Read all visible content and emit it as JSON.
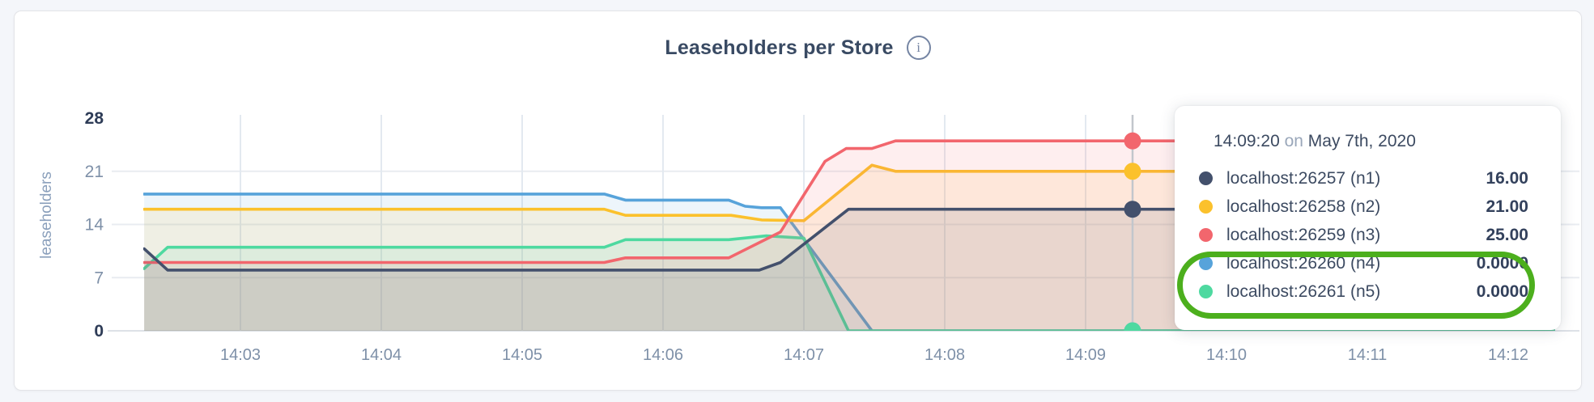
{
  "chart": {
    "title": "Leaseholders per Store",
    "info_icon_glyph": "i",
    "y_axis_label": "leaseholders"
  },
  "tooltip": {
    "time": "14:09:20",
    "conjunction": "on",
    "date": "May 7th, 2020",
    "rows": [
      {
        "label": "localhost:26257 (n1)",
        "value": "16.00",
        "color": "#43506c"
      },
      {
        "label": "localhost:26258 (n2)",
        "value": "21.00",
        "color": "#fbc12c"
      },
      {
        "label": "localhost:26259 (n3)",
        "value": "25.00",
        "color": "#f2666d"
      },
      {
        "label": "localhost:26260 (n4)",
        "value": "0.0000",
        "color": "#57a3da"
      },
      {
        "label": "localhost:26261 (n5)",
        "value": "0.0000",
        "color": "#4ed9a0"
      }
    ]
  },
  "annotation": {
    "shape": "ellipse-highlight",
    "color": "#4caf1d"
  },
  "colors": {
    "page_bg": "#f4f6fa",
    "card_bg": "#ffffff",
    "grid": "#e9ecf1",
    "grid_vertical": "#e3e9f0",
    "baseline": "#dde1e7",
    "crosshair": "#c2c6cc",
    "axis_text": "#7e90a8",
    "axis_text_strong": "#2e3c57"
  },
  "chart_data": {
    "type": "area",
    "title": "Leaseholders per Store",
    "ylabel": "leaseholders",
    "xlabel": "",
    "ylim": [
      0,
      28
    ],
    "y_ticks": [
      0,
      7,
      14,
      21,
      28
    ],
    "x_ticks": [
      "14:03",
      "14:04",
      "14:05",
      "14:06",
      "14:07",
      "14:08",
      "14:09",
      "14:10",
      "14:11",
      "14:12"
    ],
    "x_range": [
      "14:02:19",
      "14:12:20"
    ],
    "grid": true,
    "legend_position": "tooltip",
    "series": [
      {
        "name": "localhost:26257 (n1)",
        "color": "#43506c",
        "points": [
          [
            "14:02:19",
            10.8
          ],
          [
            "14:02:29",
            8
          ],
          [
            "14:06:41",
            8
          ],
          [
            "14:06:50",
            9
          ],
          [
            "14:07:19",
            16
          ],
          [
            "14:12:20",
            16
          ]
        ]
      },
      {
        "name": "localhost:26258 (n2)",
        "color": "#fbc12c",
        "points": [
          [
            "14:02:19",
            16
          ],
          [
            "14:05:35",
            16
          ],
          [
            "14:05:44",
            15.2
          ],
          [
            "14:06:29",
            15.2
          ],
          [
            "14:06:42",
            14.6
          ],
          [
            "14:07:00",
            14.5
          ],
          [
            "14:07:29",
            21.8
          ],
          [
            "14:07:39",
            21
          ],
          [
            "14:12:20",
            21
          ]
        ]
      },
      {
        "name": "localhost:26259 (n3)",
        "color": "#f2666d",
        "points": [
          [
            "14:02:19",
            9
          ],
          [
            "14:05:35",
            9
          ],
          [
            "14:05:44",
            9.6
          ],
          [
            "14:06:28",
            9.6
          ],
          [
            "14:06:50",
            13
          ],
          [
            "14:07:09",
            22.3
          ],
          [
            "14:07:18",
            24
          ],
          [
            "14:07:29",
            24
          ],
          [
            "14:07:39",
            25
          ],
          [
            "14:12:20",
            25
          ]
        ]
      },
      {
        "name": "localhost:26260 (n4)",
        "color": "#57a3da",
        "points": [
          [
            "14:02:19",
            18
          ],
          [
            "14:05:35",
            18
          ],
          [
            "14:05:44",
            17.2
          ],
          [
            "14:06:28",
            17.2
          ],
          [
            "14:06:35",
            16.4
          ],
          [
            "14:06:42",
            16.2
          ],
          [
            "14:06:50",
            16.2
          ],
          [
            "14:07:29",
            0
          ],
          [
            "14:12:20",
            0
          ]
        ]
      },
      {
        "name": "localhost:26261 (n5)",
        "color": "#4ed9a0",
        "points": [
          [
            "14:02:19",
            8.2
          ],
          [
            "14:02:29",
            11
          ],
          [
            "14:05:35",
            11
          ],
          [
            "14:05:44",
            12
          ],
          [
            "14:06:28",
            12
          ],
          [
            "14:06:44",
            12.5
          ],
          [
            "14:07:00",
            12.2
          ],
          [
            "14:07:19",
            0
          ],
          [
            "14:12:20",
            0
          ]
        ]
      }
    ],
    "crosshair": {
      "time": "14:09:20",
      "values": [
        16,
        21,
        25,
        0,
        0
      ]
    }
  }
}
